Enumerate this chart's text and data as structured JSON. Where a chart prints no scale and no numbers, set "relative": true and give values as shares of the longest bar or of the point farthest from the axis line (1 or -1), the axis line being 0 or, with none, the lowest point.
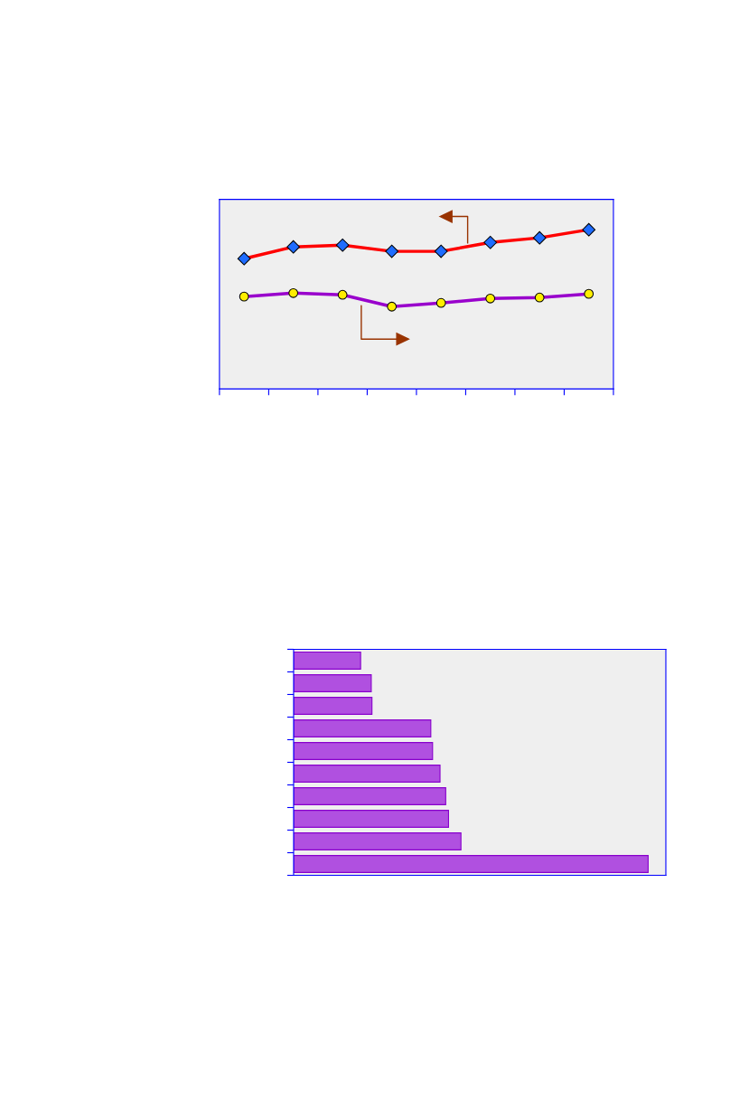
{
  "chart_data": [
    {
      "type": "line",
      "relative": true,
      "categories": [
        null,
        null,
        null,
        null,
        null,
        null,
        null,
        null
      ],
      "grid": false,
      "legend": false,
      "series": [
        {
          "color": "#ff0000",
          "marker": "diamond",
          "values": [
            0.818,
            0.892,
            0.903,
            0.864,
            0.864,
            0.92,
            0.949,
            1.0
          ]
        },
        {
          "color": "#9900cc",
          "marker": "circle",
          "values": [
            0.58,
            0.602,
            0.591,
            0.517,
            0.54,
            0.568,
            0.574,
            0.597
          ]
        }
      ]
    },
    {
      "type": "bar",
      "orientation": "horizontal",
      "relative": true,
      "categories": [
        null,
        null,
        null,
        null,
        null,
        null,
        null,
        null,
        null,
        null
      ],
      "grid": false,
      "legend": false,
      "color": "#b050e0",
      "values": [
        0.189,
        0.219,
        0.221,
        0.387,
        0.392,
        0.413,
        0.429,
        0.437,
        0.472,
        1.0
      ]
    }
  ]
}
